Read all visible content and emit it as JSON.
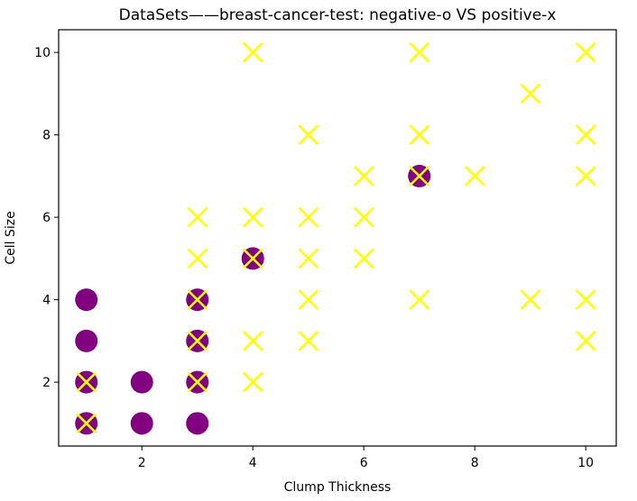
{
  "chart_data": {
    "type": "scatter",
    "title": "DataSets——breast-cancer-test: negative-o VS positive-x",
    "xlabel": "Clump Thickness",
    "ylabel": "Cell Size",
    "xlim": [
      0.5,
      10.55
    ],
    "ylim": [
      0.45,
      10.55
    ],
    "xticks": [
      2,
      4,
      6,
      8,
      10
    ],
    "yticks": [
      2,
      4,
      6,
      8,
      10
    ],
    "grid": false,
    "series": [
      {
        "marker": "o",
        "color": "#800080",
        "points": [
          [
            1,
            1
          ],
          [
            1,
            2
          ],
          [
            1,
            3
          ],
          [
            1,
            4
          ],
          [
            2,
            1
          ],
          [
            2,
            2
          ],
          [
            3,
            1
          ],
          [
            3,
            2
          ],
          [
            3,
            3
          ],
          [
            3,
            4
          ],
          [
            4,
            5
          ],
          [
            7,
            7
          ]
        ]
      },
      {
        "marker": "x",
        "color": "#ffff00",
        "points": [
          [
            1,
            1
          ],
          [
            1,
            2
          ],
          [
            3,
            2
          ],
          [
            3,
            3
          ],
          [
            3,
            4
          ],
          [
            3,
            5
          ],
          [
            3,
            6
          ],
          [
            4,
            2
          ],
          [
            4,
            3
          ],
          [
            4,
            5
          ],
          [
            4,
            6
          ],
          [
            4,
            10
          ],
          [
            5,
            3
          ],
          [
            5,
            4
          ],
          [
            5,
            5
          ],
          [
            5,
            6
          ],
          [
            5,
            8
          ],
          [
            6,
            5
          ],
          [
            6,
            6
          ],
          [
            6,
            7
          ],
          [
            7,
            4
          ],
          [
            7,
            7
          ],
          [
            7,
            8
          ],
          [
            7,
            10
          ],
          [
            8,
            7
          ],
          [
            9,
            4
          ],
          [
            9,
            9
          ],
          [
            10,
            3
          ],
          [
            10,
            4
          ],
          [
            10,
            7
          ],
          [
            10,
            8
          ],
          [
            10,
            10
          ]
        ]
      }
    ]
  }
}
